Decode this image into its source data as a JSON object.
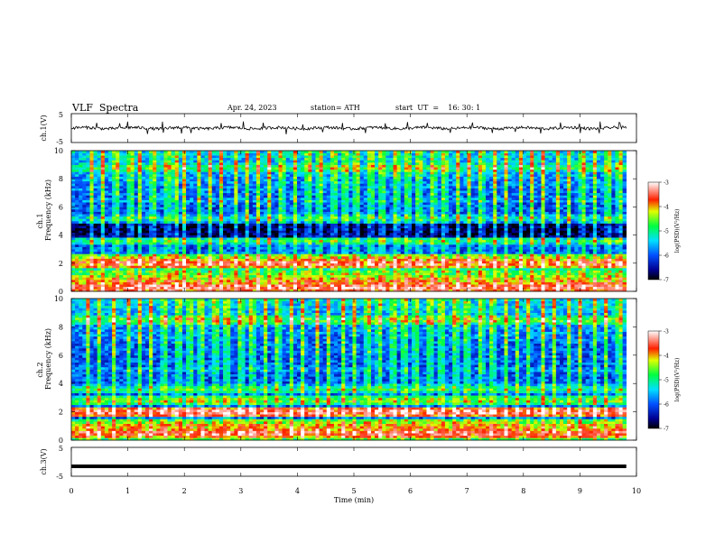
{
  "header": {
    "title": "VLF  Spectra",
    "date": "Apr. 24, 2023",
    "station": "station= ATH",
    "start": "start  UT  =    16: 30: 1"
  },
  "chart_data": [
    {
      "type": "line",
      "name": "ch1-waveform",
      "ylabel": "ch.1(V)",
      "ylim": [
        -5,
        5
      ],
      "ytick_labels": [
        "5",
        "-5"
      ],
      "xlim": [
        0,
        10
      ],
      "x_extent": [
        0,
        9.82
      ],
      "baseline": 0,
      "amplitude_typical": 0.7,
      "spike_times_min": [
        0.45,
        0.85,
        1.0,
        1.35,
        1.62,
        1.95,
        2.12,
        2.65,
        3.05,
        3.4,
        3.8,
        4.1,
        4.45,
        4.8,
        5.2,
        5.55,
        5.95,
        6.3,
        6.7,
        7.1,
        7.45,
        7.85,
        8.3,
        8.65,
        9.0,
        9.35,
        9.7
      ]
    },
    {
      "type": "heatmap",
      "name": "ch1-spectrogram",
      "ylabel": "ch.1\nFrequency  (kHz)",
      "ylim": [
        0,
        10
      ],
      "ytick_labels": [
        "0",
        "2",
        "4",
        "6",
        "8",
        "10"
      ],
      "xlim": [
        0,
        10
      ],
      "x_extent": [
        0,
        9.82
      ],
      "colorbar": {
        "label": "log(PSD)(V²/Hz)",
        "range": [
          -7,
          -3
        ],
        "tick_labels": [
          "-3",
          "-4",
          "-5",
          "-6",
          "-7"
        ]
      },
      "impulse_times_min": [
        0.35,
        0.55,
        0.8,
        1.05,
        1.22,
        1.45,
        1.7,
        1.85,
        2.0,
        2.25,
        2.45,
        2.65,
        2.9,
        3.1,
        3.3,
        3.5,
        3.72,
        3.95,
        4.2,
        4.4,
        4.65,
        4.85,
        5.05,
        5.3,
        5.5,
        5.75,
        5.95,
        6.15,
        6.4,
        6.6,
        6.85,
        7.05,
        7.25,
        7.5,
        7.7,
        7.95,
        8.15,
        8.35,
        8.6,
        8.8,
        9.05,
        9.25,
        9.5,
        9.7
      ],
      "bands": [
        {
          "f_khz": 0.3,
          "level": -3.4
        },
        {
          "f_khz": 0.8,
          "level": -4.0
        },
        {
          "f_khz": 1.3,
          "level": -4.6
        },
        {
          "f_khz": 2.0,
          "level": -3.6
        },
        {
          "f_khz": 2.3,
          "level": -4.2
        },
        {
          "f_khz": 3.6,
          "level": -5.0
        },
        {
          "f_khz": 4.4,
          "level": -6.8
        },
        {
          "f_khz": 5.2,
          "level": -5.2
        },
        {
          "f_khz": 6.5,
          "level": -5.6
        },
        {
          "f_khz": 8.8,
          "level": -4.8
        }
      ]
    },
    {
      "type": "heatmap",
      "name": "ch2-spectrogram",
      "ylabel": "ch.2\nFrequency  (kHz)",
      "ylim": [
        0,
        10
      ],
      "ytick_labels": [
        "0",
        "2",
        "4",
        "6",
        "8",
        "10"
      ],
      "xlim": [
        0,
        10
      ],
      "x_extent": [
        0,
        9.82
      ],
      "colorbar": {
        "label": "log(PSD)(V²/Hz)",
        "range": [
          -7,
          -3
        ],
        "tick_labels": [
          "-3",
          "-4",
          "-5",
          "-6",
          "-7"
        ]
      },
      "impulse_times_min": [
        0.3,
        0.5,
        0.75,
        1.0,
        1.2,
        1.4,
        1.65,
        1.9,
        2.1,
        2.3,
        2.55,
        2.75,
        3.0,
        3.2,
        3.45,
        3.65,
        3.9,
        4.1,
        4.35,
        4.55,
        4.8,
        5.0,
        5.25,
        5.45,
        5.7,
        5.9,
        6.1,
        6.35,
        6.55,
        6.8,
        7.0,
        7.25,
        7.45,
        7.7,
        7.9,
        8.1,
        8.35,
        8.55,
        8.8,
        9.0,
        9.25,
        9.45,
        9.7
      ],
      "bands": [
        {
          "f_khz": 0.5,
          "level": -3.5
        },
        {
          "f_khz": 1.0,
          "level": -4.0
        },
        {
          "f_khz": 2.0,
          "level": -3.4
        },
        {
          "f_khz": 2.8,
          "level": -4.6
        },
        {
          "f_khz": 3.6,
          "level": -5.0
        },
        {
          "f_khz": 5.0,
          "level": -5.6
        },
        {
          "f_khz": 6.2,
          "level": -5.8
        },
        {
          "f_khz": 8.5,
          "level": -4.6
        }
      ]
    },
    {
      "type": "line",
      "name": "ch3-waveform",
      "ylabel": "ch.3(V)",
      "ylim": [
        -5,
        5
      ],
      "ytick_labels": [
        "5",
        "-5"
      ],
      "xlim": [
        0,
        10
      ],
      "x_extent": [
        0,
        9.82
      ],
      "baseline": -1.8,
      "amplitude_typical": 0.0,
      "xlabel": "Time  (min)",
      "xtick_labels": [
        "0",
        "1",
        "2",
        "3",
        "4",
        "5",
        "6",
        "7",
        "8",
        "9",
        "10"
      ]
    }
  ]
}
